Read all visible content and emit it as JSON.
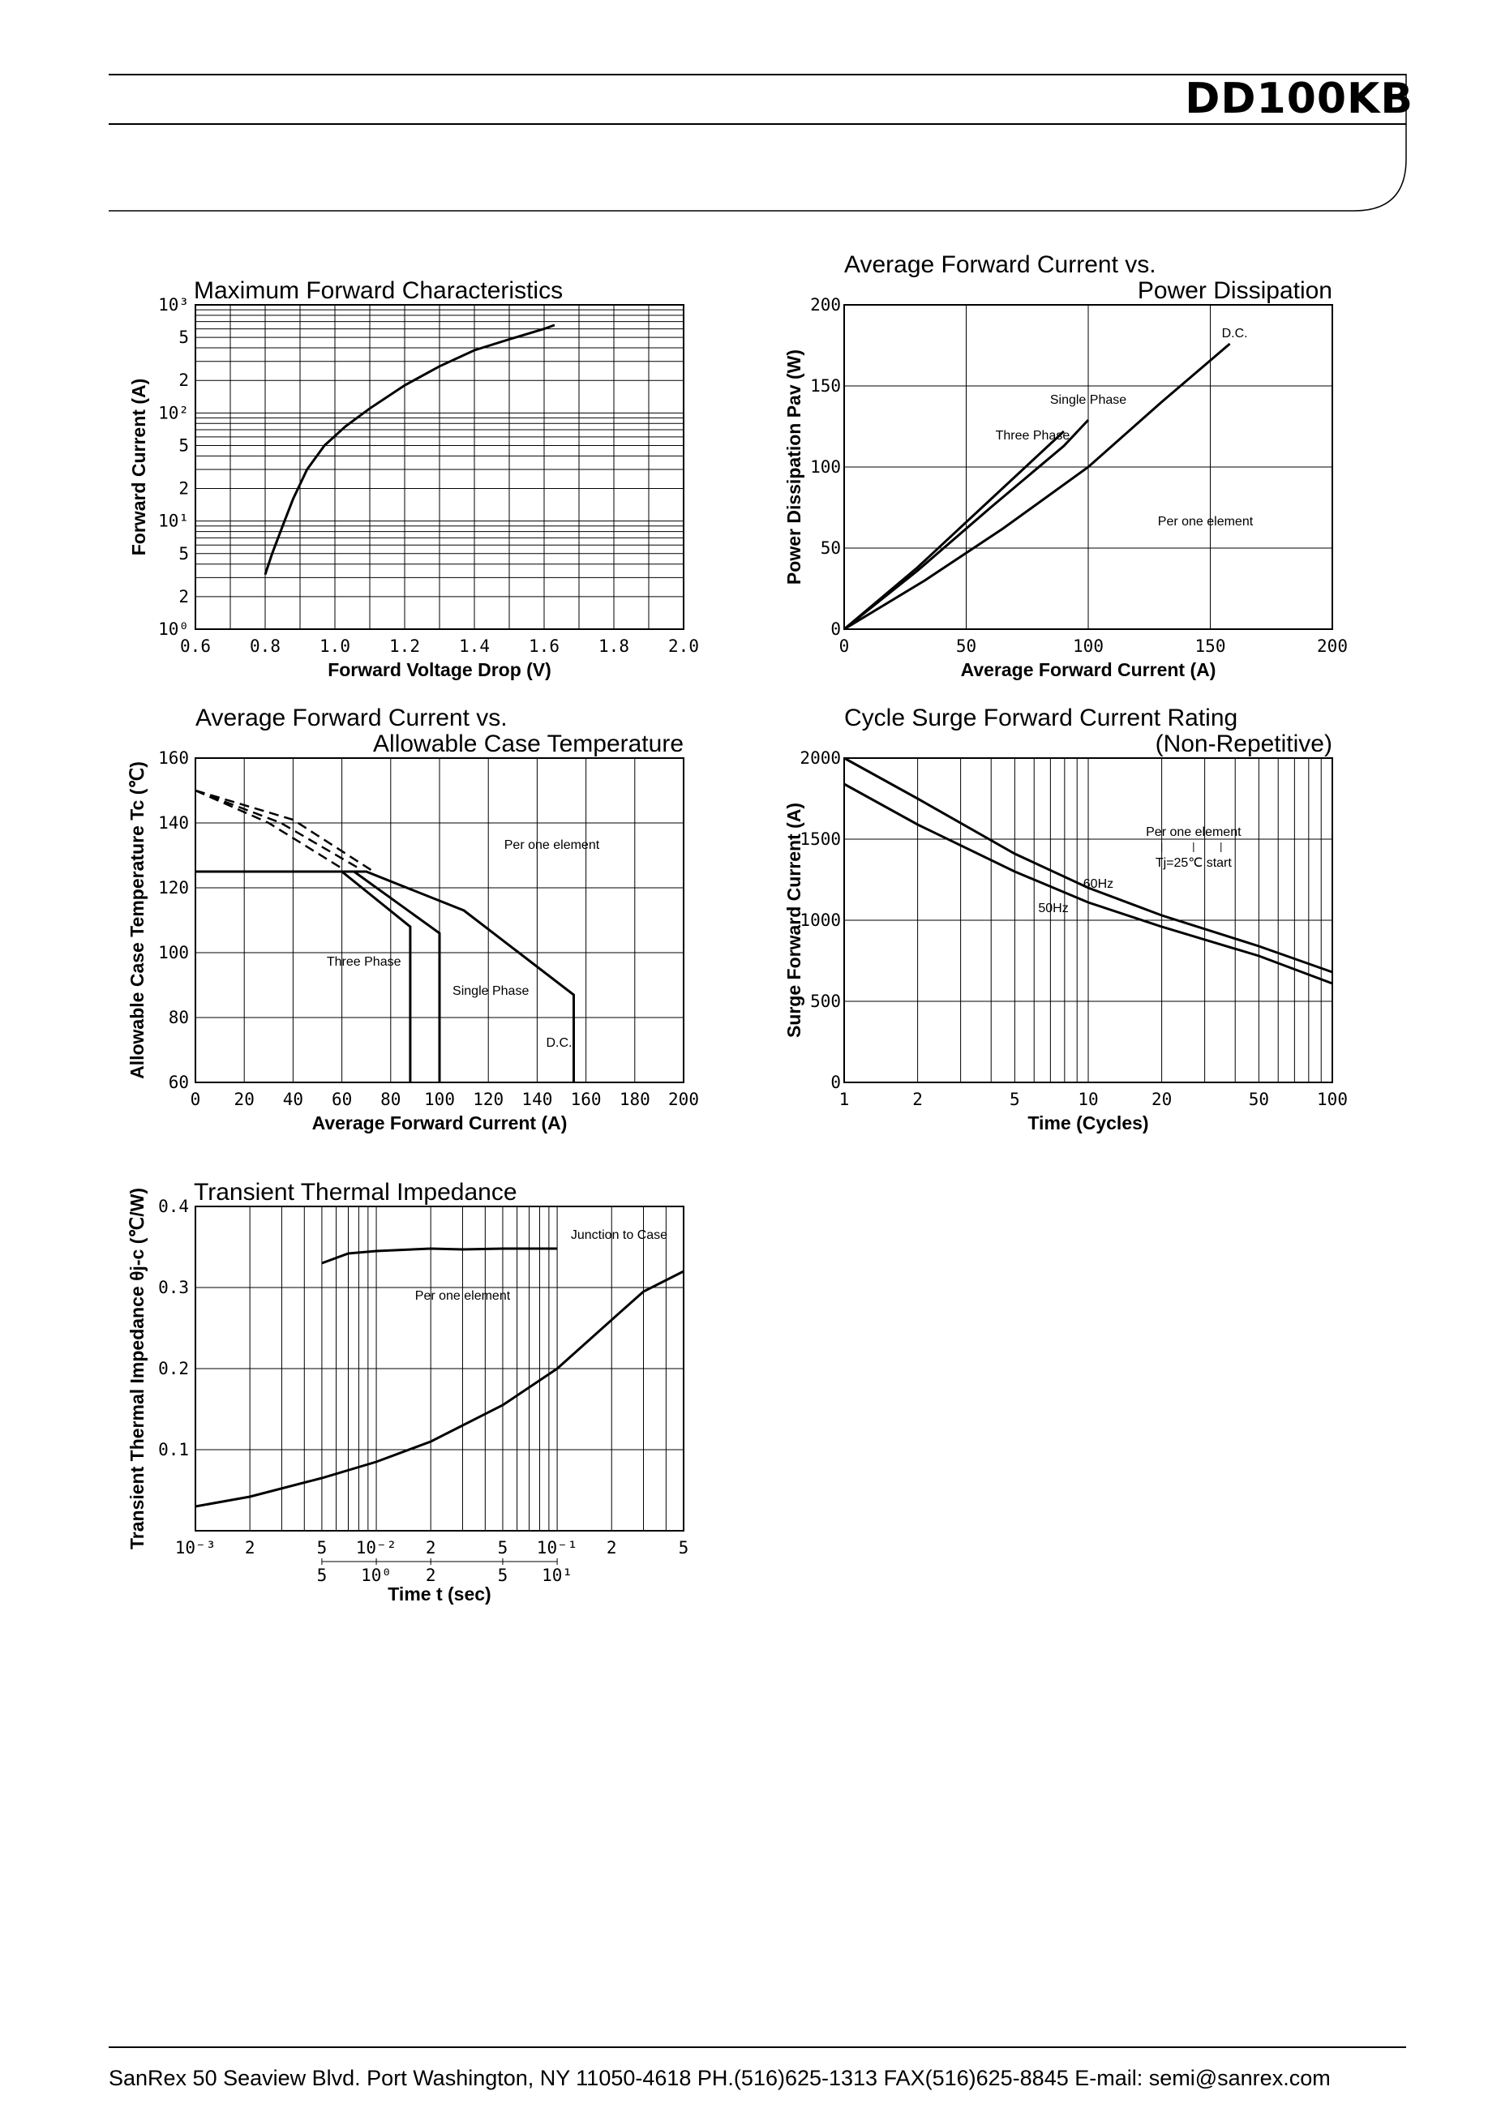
{
  "header": {
    "title": "DD100KB"
  },
  "footer": {
    "text": "SanRex  50 Seaview Blvd.  Port Washington, NY 11050-4618  PH.(516)625-1313  FAX(516)625-8845  E-mail: semi@sanrex.com"
  },
  "chart_data": [
    {
      "id": "fwd",
      "type": "line",
      "title": "Maximum Forward Characteristics",
      "xlabel": "Forward Voltage Drop (V)",
      "ylabel": "Forward Current (A)",
      "xlim": [
        0.6,
        2.0
      ],
      "ylim": [
        1,
        1000
      ],
      "yscale": "log",
      "grid": true,
      "xticks": [
        "0.6",
        "0.8",
        "1.0",
        "1.2",
        "1.4",
        "1.6",
        "1.8",
        "2.0"
      ],
      "yticks": [
        {
          "v": 1,
          "t": "10⁰"
        },
        {
          "v": 2,
          "t": "2"
        },
        {
          "v": 5,
          "t": "5"
        },
        {
          "v": 10,
          "t": "10¹"
        },
        {
          "v": 20,
          "t": "2"
        },
        {
          "v": 50,
          "t": "5"
        },
        {
          "v": 100,
          "t": "10²"
        },
        {
          "v": 200,
          "t": "2"
        },
        {
          "v": 500,
          "t": "5"
        },
        {
          "v": 1000,
          "t": "10³"
        }
      ],
      "series": [
        {
          "x": [
            0.8,
            0.82,
            0.85,
            0.88,
            0.92,
            0.97,
            1.03,
            1.1,
            1.2,
            1.3,
            1.4,
            1.5,
            1.6,
            1.63
          ],
          "y": [
            3.2,
            5,
            9,
            16,
            30,
            50,
            75,
            110,
            180,
            270,
            380,
            480,
            600,
            650
          ]
        }
      ]
    },
    {
      "id": "pd",
      "type": "line",
      "title_lines": [
        "Average Forward Current vs.",
        "Power Dissipation"
      ],
      "xlabel": "Average Forward Current (A)",
      "ylabel": "Power Dissipation Pav (W)",
      "xlim": [
        0,
        200
      ],
      "ylim": [
        0,
        200
      ],
      "grid": true,
      "xticks": [
        "0",
        "50",
        "100",
        "150",
        "200"
      ],
      "yticks": [
        "0",
        "50",
        "100",
        "150",
        "200"
      ],
      "series": [
        {
          "name": "Three Phase",
          "x": [
            0,
            30,
            60,
            90
          ],
          "y": [
            0,
            38,
            80,
            122
          ]
        },
        {
          "name": "Single Phase",
          "x": [
            0,
            30,
            60,
            90,
            100
          ],
          "y": [
            0,
            36,
            75,
            113,
            129
          ]
        },
        {
          "name": "D.C.",
          "x": [
            0,
            33,
            65,
            100,
            130,
            158
          ],
          "y": [
            0,
            30,
            62,
            100,
            140,
            176
          ]
        }
      ],
      "annotations": [
        "Per one element"
      ]
    },
    {
      "id": "tc",
      "type": "line",
      "title_lines": [
        "Average Forward Current vs.",
        "Allowable Case Temperature"
      ],
      "xlabel": "Average Forward Current (A)",
      "ylabel": "Allowable Case Temperature Tc (℃)",
      "xlim": [
        0,
        200
      ],
      "ylim": [
        60,
        160
      ],
      "grid": true,
      "xticks": [
        "0",
        "20",
        "40",
        "60",
        "80",
        "100",
        "120",
        "140",
        "160",
        "180",
        "200"
      ],
      "yticks": [
        "60",
        "80",
        "100",
        "120",
        "140",
        "160"
      ],
      "series": [
        {
          "name": "Three Phase",
          "x": [
            0,
            60,
            88,
            88
          ],
          "y": [
            125,
            125,
            108,
            60
          ]
        },
        {
          "name": "Single Phase",
          "x": [
            0,
            65,
            100,
            100
          ],
          "y": [
            125,
            125,
            106,
            60
          ]
        },
        {
          "name": "D.C.",
          "x": [
            0,
            70,
            110,
            155,
            155
          ],
          "y": [
            125,
            125,
            113,
            87,
            60
          ]
        }
      ],
      "dashed": [
        {
          "x": [
            0,
            30,
            60
          ],
          "y": [
            150,
            140,
            126
          ]
        },
        {
          "x": [
            0,
            35,
            67
          ],
          "y": [
            150,
            140,
            126
          ]
        },
        {
          "x": [
            0,
            40,
            73
          ],
          "y": [
            150,
            141,
            125
          ]
        }
      ],
      "annotations": [
        "Per one element"
      ]
    },
    {
      "id": "surge",
      "type": "line",
      "title_lines": [
        "Cycle Surge Forward Current Rating",
        "(Non-Repetitive)"
      ],
      "xlabel": "Time (Cycles)",
      "ylabel": "Surge Forward Current (A)",
      "xlim": [
        1,
        100
      ],
      "xscale": "log",
      "ylim": [
        0,
        2000
      ],
      "grid": true,
      "xticks": [
        {
          "v": 1,
          "t": "1"
        },
        {
          "v": 2,
          "t": "2"
        },
        {
          "v": 5,
          "t": "5"
        },
        {
          "v": 10,
          "t": "10"
        },
        {
          "v": 20,
          "t": "20"
        },
        {
          "v": 50,
          "t": "50"
        },
        {
          "v": 100,
          "t": "100"
        }
      ],
      "yticks": [
        "0",
        "500",
        "1000",
        "1500",
        "2000"
      ],
      "series": [
        {
          "name": "60Hz",
          "x": [
            1,
            2,
            5,
            10,
            20,
            50,
            100
          ],
          "y": [
            2000,
            1750,
            1410,
            1200,
            1030,
            840,
            680
          ]
        },
        {
          "name": "50Hz",
          "x": [
            1,
            2,
            5,
            10,
            20,
            50,
            100
          ],
          "y": [
            1840,
            1590,
            1300,
            1110,
            960,
            780,
            610
          ]
        }
      ],
      "annotations": [
        "Per one element",
        "Tj=25℃  start"
      ]
    },
    {
      "id": "tti",
      "type": "line",
      "title": "Transient Thermal Impedance",
      "xlabel": "Time t (sec)",
      "ylabel": "Transient Thermal Impedance θj-c (℃/W)",
      "xlim": [
        0.001,
        0.5
      ],
      "xscale": "log",
      "ylim": [
        0,
        0.4
      ],
      "grid": true,
      "xticks": [
        {
          "v": 0.001,
          "t": "10⁻³"
        },
        {
          "v": 0.002,
          "t": "2"
        },
        {
          "v": 0.005,
          "t": "5"
        },
        {
          "v": 0.01,
          "t": "10⁻²"
        },
        {
          "v": 0.02,
          "t": "2"
        },
        {
          "v": 0.05,
          "t": "5"
        },
        {
          "v": 0.1,
          "t": "10⁻¹"
        },
        {
          "v": 0.2,
          "t": "2"
        },
        {
          "v": 0.5,
          "t": "5"
        }
      ],
      "xticks2": [
        {
          "v": 0.005,
          "t": "5"
        },
        {
          "v": 0.01,
          "t": "10⁰"
        },
        {
          "v": 0.02,
          "t": "2"
        },
        {
          "v": 0.05,
          "t": "5"
        },
        {
          "v": 0.1,
          "t": "10¹"
        }
      ],
      "yticks": [
        {
          "v": 0.1,
          "t": "0.1"
        },
        {
          "v": 0.2,
          "t": "0.2"
        },
        {
          "v": 0.3,
          "t": "0.3"
        },
        {
          "v": 0.4,
          "t": "0.4"
        }
      ],
      "series": [
        {
          "name": "Junction to Case",
          "x": [
            0.005,
            0.007,
            0.01,
            0.02,
            0.03,
            0.05,
            0.1
          ],
          "y": [
            0.33,
            0.342,
            0.345,
            0.348,
            0.347,
            0.348,
            0.348
          ]
        },
        {
          "name": "Per one element",
          "x": [
            0.001,
            0.002,
            0.005,
            0.01,
            0.02,
            0.05,
            0.1,
            0.2,
            0.3,
            0.5
          ],
          "y": [
            0.03,
            0.042,
            0.065,
            0.085,
            0.11,
            0.155,
            0.2,
            0.26,
            0.295,
            0.32
          ]
        }
      ],
      "annotations": [
        "Per one element"
      ]
    }
  ]
}
